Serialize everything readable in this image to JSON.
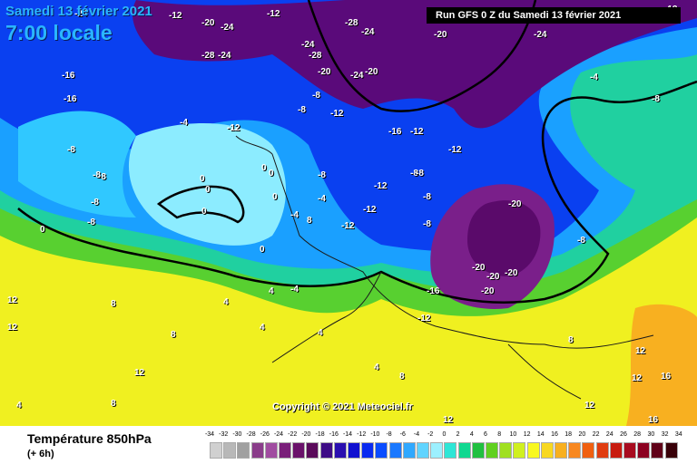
{
  "header": {
    "date_label": "Samedi 13 février 2021",
    "hour_label": "7:00 locale"
  },
  "run_label": "Run GFS 0 Z du Samedi 13 février 2021",
  "copyright": "Copyright © 2021 Meteociel.fr",
  "legend": {
    "title": "Température 850hPa",
    "subtitle": "(+ 6h)",
    "ticks": [
      "-34",
      "-32",
      "-30",
      "-28",
      "-26",
      "-24",
      "-22",
      "-20",
      "-18",
      "-16",
      "-14",
      "-12",
      "-10",
      "-8",
      "-6",
      "-4",
      "-2",
      "0",
      "2",
      "4",
      "6",
      "8",
      "10",
      "12",
      "14",
      "16",
      "18",
      "20",
      "22",
      "24",
      "26",
      "28",
      "30",
      "32",
      "34"
    ],
    "colors": [
      "#d0d0d0",
      "#b8b8b8",
      "#a0a0a0",
      "#8a3d8a",
      "#a04ca0",
      "#7a1f7a",
      "#6a116a",
      "#5a0a5a",
      "#3e0c86",
      "#2a0fb0",
      "#1010d0",
      "#0a2af0",
      "#0a4cff",
      "#1a78ff",
      "#30a8ff",
      "#60d4ff",
      "#9cf0ff",
      "#2ee6d6",
      "#10d890",
      "#20c040",
      "#60d020",
      "#a0e020",
      "#d0f020",
      "#f8f820",
      "#f8d820",
      "#f8b020",
      "#f88820",
      "#f06010",
      "#e03c10",
      "#c81c10",
      "#a80c20",
      "#8c0020",
      "#600018",
      "#380008"
    ]
  },
  "map": {
    "labels": [
      {
        "t": "-24"
      },
      {
        "t": "-12"
      },
      {
        "t": "-20"
      },
      {
        "t": "-24"
      },
      {
        "t": "-12"
      },
      {
        "t": "-28"
      },
      {
        "t": "-24"
      },
      {
        "t": "-20"
      },
      {
        "t": "-24"
      },
      {
        "t": "-12"
      },
      {
        "t": "-28"
      },
      {
        "t": "-24"
      },
      {
        "t": "-24"
      },
      {
        "t": "-28"
      },
      {
        "t": "-20"
      },
      {
        "t": "-24"
      },
      {
        "t": "-20"
      },
      {
        "t": "-16"
      },
      {
        "t": "-16"
      },
      {
        "t": "-8"
      },
      {
        "t": "-12"
      },
      {
        "t": "-8"
      },
      {
        "t": "-12"
      },
      {
        "t": "-16"
      },
      {
        "t": "-12"
      },
      {
        "t": "-12"
      },
      {
        "t": "-8"
      },
      {
        "t": "-8"
      },
      {
        "t": "-12"
      },
      {
        "t": "-8"
      },
      {
        "t": "-8"
      },
      {
        "t": "-12"
      },
      {
        "t": "-12"
      },
      {
        "t": "-8"
      },
      {
        "t": "-20"
      },
      {
        "t": "-20"
      },
      {
        "t": "-20"
      },
      {
        "t": "-20"
      },
      {
        "t": "-16"
      },
      {
        "t": "-12"
      },
      {
        "t": "-8"
      },
      {
        "t": "-8"
      },
      {
        "t": "-4"
      },
      {
        "t": "-8"
      },
      {
        "t": "-4"
      },
      {
        "t": "-4"
      },
      {
        "t": "-12"
      },
      {
        "t": "-20"
      },
      {
        "t": "-4"
      },
      {
        "t": "-8"
      },
      {
        "t": "-8"
      },
      {
        "t": "-8"
      },
      {
        "t": "-8"
      },
      {
        "t": "0"
      },
      {
        "t": "0"
      },
      {
        "t": "0"
      },
      {
        "t": "0"
      },
      {
        "t": "0"
      },
      {
        "t": "0"
      },
      {
        "t": "0"
      },
      {
        "t": "0"
      },
      {
        "t": "12"
      },
      {
        "t": "12"
      },
      {
        "t": "8"
      },
      {
        "t": "4"
      },
      {
        "t": "4"
      },
      {
        "t": "4"
      },
      {
        "t": "8"
      },
      {
        "t": "12"
      },
      {
        "t": "8"
      },
      {
        "t": "4"
      },
      {
        "t": "4"
      },
      {
        "t": "8"
      },
      {
        "t": "8"
      },
      {
        "t": "12"
      },
      {
        "t": "12"
      },
      {
        "t": "12"
      },
      {
        "t": "16"
      },
      {
        "t": "16"
      },
      {
        "t": "12"
      },
      {
        "t": "8"
      },
      {
        "t": "-4"
      },
      {
        "t": "4"
      }
    ]
  }
}
